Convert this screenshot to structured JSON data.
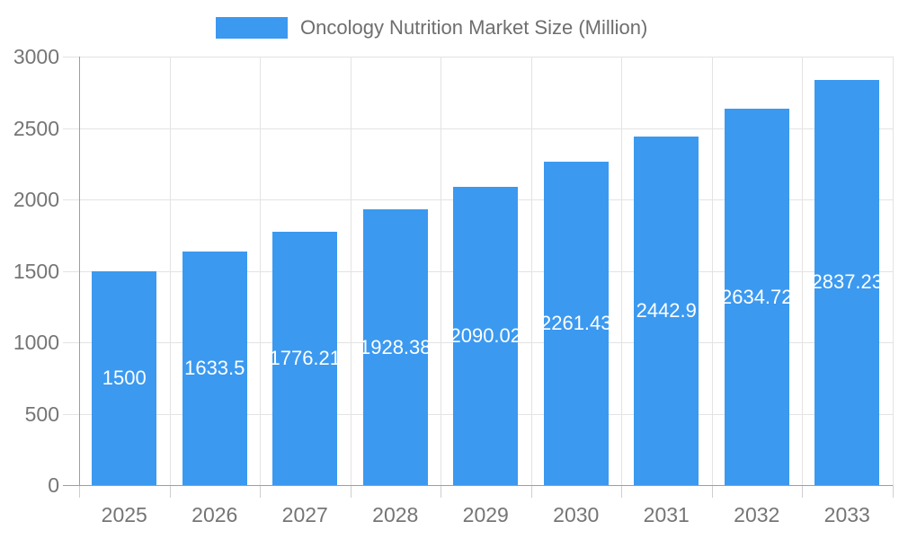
{
  "legend": {
    "label": "Oncology Nutrition Market Size (Million)"
  },
  "chart_data": {
    "type": "bar",
    "title": "Oncology Nutrition Market Size (Million)",
    "categories": [
      "2025",
      "2026",
      "2027",
      "2028",
      "2029",
      "2030",
      "2031",
      "2032",
      "2033"
    ],
    "values": [
      1500,
      1633.5,
      1776.21,
      1928.38,
      2090.02,
      2261.43,
      2442.9,
      2634.72,
      2837.23
    ],
    "value_labels": [
      "1500",
      "1633.5",
      "1776.21",
      "1928.38",
      "2090.02",
      "2261.43",
      "2442.9",
      "2634.72",
      "2837.23"
    ],
    "xlabel": "",
    "ylabel": "",
    "ylim": [
      0,
      3000
    ],
    "yticks": [
      0,
      500,
      1000,
      1500,
      2000,
      2500,
      3000
    ],
    "grid": true,
    "legend_position": "top",
    "colors": {
      "bar": "#3B99F0",
      "grid": "#e3e3e3",
      "axis": "#9e9e9e",
      "tick": "#cfcfcf",
      "axis_text": "#757575",
      "legend_text": "#6e6e6e",
      "value_text": "#ffffff",
      "background": "#ffffff"
    }
  }
}
